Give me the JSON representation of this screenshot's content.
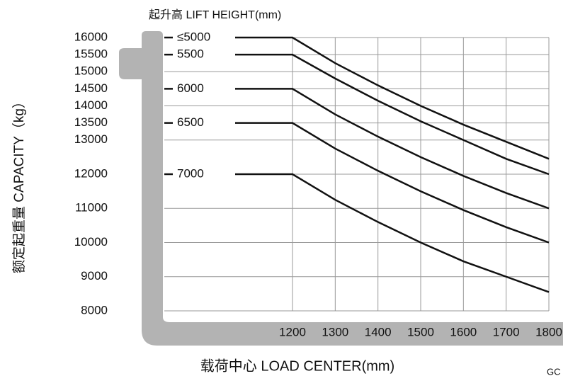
{
  "chart_data": {
    "type": "line",
    "title": "起升高 LIFT HEIGHT(mm)",
    "x_label": "载荷中心 LOAD CENTER(mm)",
    "y_label": "额定起重量 CAPACITY（kg）",
    "footer_note": "GC",
    "x": [
      900,
      1200,
      1300,
      1400,
      1500,
      1600,
      1700,
      1800
    ],
    "xlim": [
      900,
      1800
    ],
    "xticks": [
      1200,
      1300,
      1400,
      1500,
      1600,
      1700,
      1800
    ],
    "ylim": [
      8000,
      16000
    ],
    "yticks": [
      8000,
      9000,
      10000,
      11000,
      12000,
      13000,
      13500,
      14000,
      14500,
      15000,
      15500,
      16000
    ],
    "grid": true,
    "series": [
      {
        "name": "≤5000",
        "color": "#111111",
        "values": [
          16000,
          16000,
          15250,
          14600,
          14000,
          13450,
          12950,
          12450
        ]
      },
      {
        "name": "5500",
        "color": "#111111",
        "values": [
          15500,
          15500,
          14800,
          14150,
          13550,
          13000,
          12450,
          12000
        ]
      },
      {
        "name": "6000",
        "color": "#111111",
        "values": [
          14500,
          14500,
          13750,
          13100,
          12500,
          11950,
          11450,
          11000
        ]
      },
      {
        "name": "6500",
        "color": "#111111",
        "values": [
          13500,
          13500,
          12750,
          12100,
          11500,
          10950,
          10450,
          10000
        ]
      },
      {
        "name": "7000",
        "color": "#111111",
        "values": [
          12000,
          12000,
          11250,
          10600,
          10000,
          9450,
          9000,
          8550
        ]
      }
    ]
  }
}
